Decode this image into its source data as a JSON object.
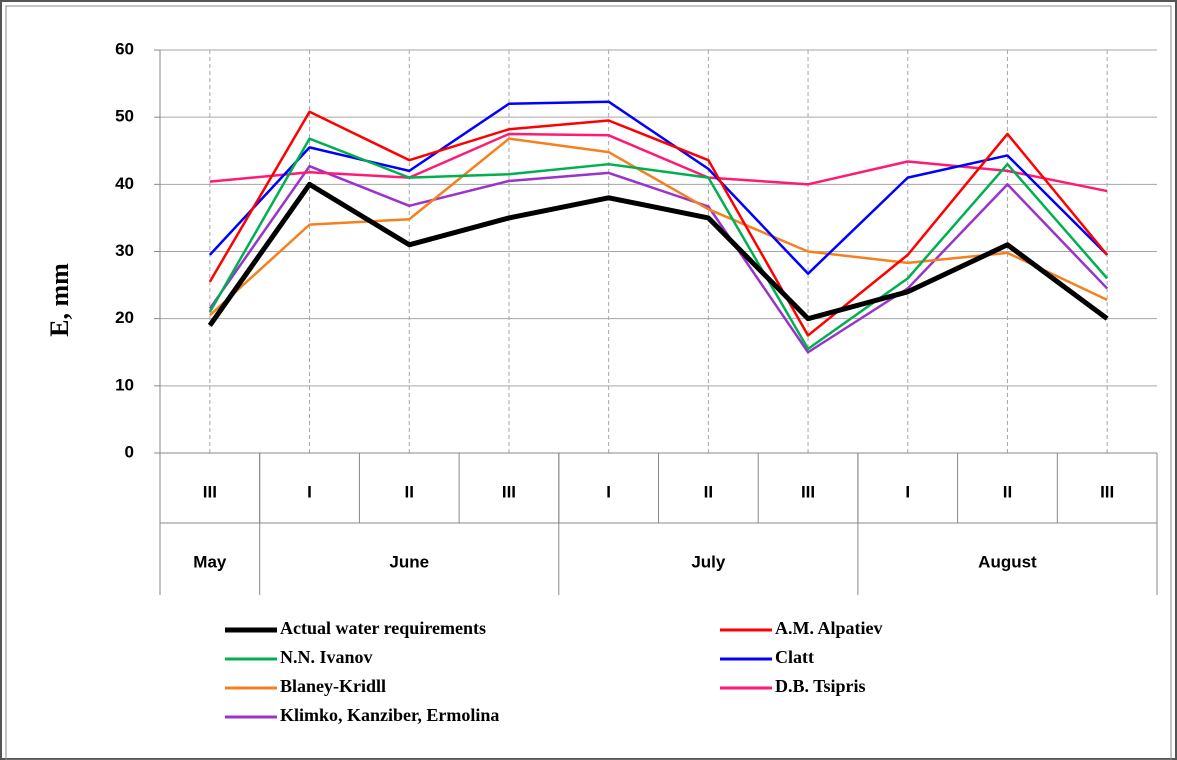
{
  "chart_data": {
    "type": "line",
    "y_label": "E, mm",
    "categories": [
      "III",
      "I",
      "II",
      "III",
      "I",
      "II",
      "III",
      "I",
      "II",
      "III"
    ],
    "month_categories": [
      "May",
      "June",
      null,
      null,
      "July",
      null,
      null,
      "August",
      null,
      null
    ],
    "ylim": [
      0,
      60
    ],
    "yticks": [
      0,
      10,
      20,
      30,
      40,
      50,
      60
    ],
    "grid": true,
    "series": [
      {
        "name": "Actual water requirements",
        "color": "#000000",
        "values": [
          19,
          40,
          31,
          35,
          38,
          35,
          20,
          24,
          31,
          20
        ]
      },
      {
        "name": "A.M. Alpatiev",
        "color": "#ff0000",
        "values": [
          25.5,
          50.8,
          43.6,
          48.2,
          49.5,
          43.6,
          17.5,
          29.5,
          47.5,
          29.5
        ]
      },
      {
        "name": "N.N. Ivanov",
        "color": "#00b050",
        "values": [
          21,
          46.8,
          41,
          41.5,
          43,
          41,
          15.5,
          26,
          43,
          26
        ]
      },
      {
        "name": "Clatt",
        "color": "#0000ff",
        "values": [
          29.5,
          45.5,
          42,
          52,
          52.3,
          42.3,
          26.7,
          41,
          44.3,
          29.5
        ]
      },
      {
        "name": "Blaney-Kridll",
        "color": "#f5801e",
        "values": [
          20.5,
          34,
          34.8,
          46.8,
          44.8,
          36.3,
          30,
          28.3,
          29.8,
          22.8
        ]
      },
      {
        "name": "D.B. Tsipris",
        "color": "#ff1a75",
        "values": [
          40.4,
          41.8,
          41,
          47.5,
          47.3,
          41,
          40,
          43.4,
          42,
          39
        ]
      },
      {
        "name": "Klimko, Kanziber, Ermolina",
        "color": "#9933cc",
        "values": [
          21.5,
          42.7,
          36.8,
          40.5,
          41.7,
          36.7,
          15,
          24.5,
          40,
          24.5
        ]
      }
    ]
  }
}
